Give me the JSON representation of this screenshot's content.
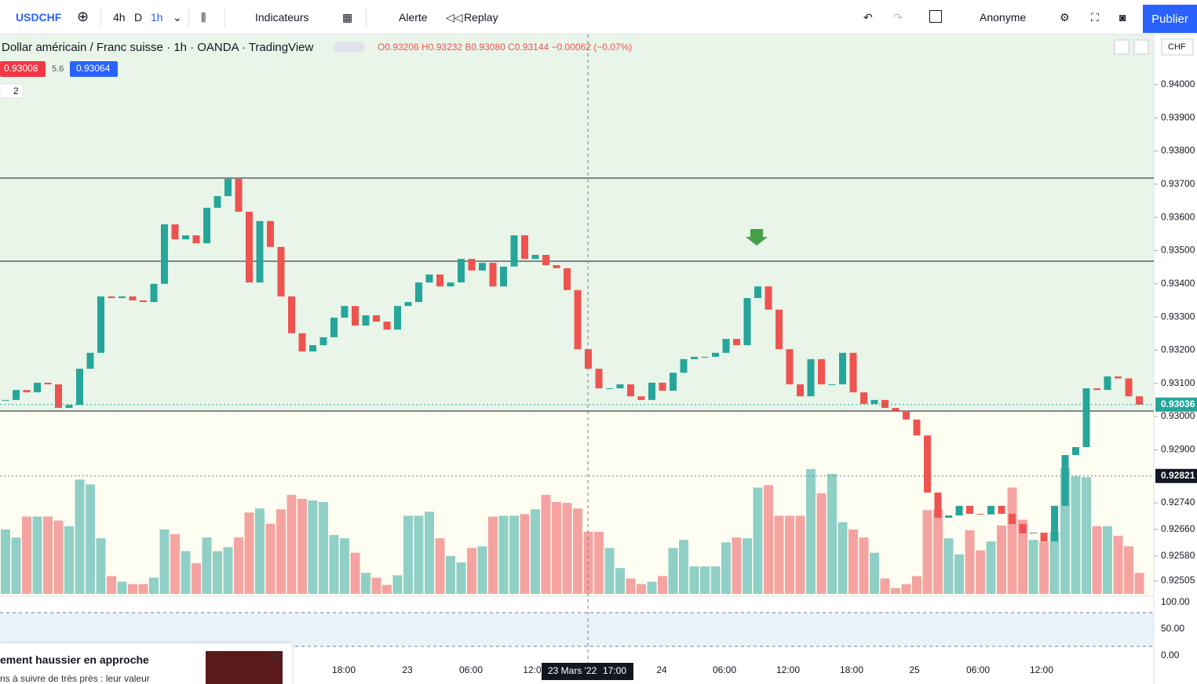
{
  "toolbar": {
    "symbol": "USDCHF",
    "intervals": [
      "4h",
      "D",
      "1h"
    ],
    "indicators": "Indicateurs",
    "alert": "Alerte",
    "replay": "Replay",
    "layout": "Anonyme",
    "publish": "Publier"
  },
  "legend": {
    "title": "Dollar américain / Franc suisse · 1h · OANDA · TradingView",
    "ohlc": "O0.93206 H0.93232 B0.93080 C0.93144 −0.00062 (−0.07%)",
    "bid": "0.93008",
    "spread": "5.6",
    "ask": "0.93064",
    "collapse": "2",
    "currency": "CHF"
  },
  "chart": {
    "ylim": [
      0.92466,
      0.94151
    ],
    "yticks": [
      {
        "value": 0.94,
        "label": "0.94000"
      },
      {
        "value": 0.939,
        "label": "0.93900"
      },
      {
        "value": 0.938,
        "label": "0.93800"
      },
      {
        "value": 0.937,
        "label": "0.93700"
      },
      {
        "value": 0.936,
        "label": "0.93600"
      },
      {
        "value": 0.935,
        "label": "0.93500"
      },
      {
        "value": 0.934,
        "label": "0.93400"
      },
      {
        "value": 0.933,
        "label": "0.93300"
      },
      {
        "value": 0.932,
        "label": "0.93200"
      },
      {
        "value": 0.931,
        "label": "0.93100"
      },
      {
        "value": 0.93,
        "label": "0.93000"
      },
      {
        "value": 0.929,
        "label": "0.92900"
      },
      {
        "value": 0.9274,
        "label": "0.92740"
      },
      {
        "value": 0.9266,
        "label": "0.92660"
      },
      {
        "value": 0.9258,
        "label": "0.92580"
      },
      {
        "value": 0.92505,
        "label": "0.92505"
      }
    ],
    "current_price": {
      "value": 0.93036,
      "label": "0.93036"
    },
    "crosshair_price": {
      "value": 0.92821,
      "label": "0.92821"
    },
    "crosshair_time": [
      "23 Mars '22",
      "17:00"
    ],
    "closes": [
      0.9305,
      0.9308,
      0.93073,
      0.93102,
      0.93097,
      0.93026,
      0.93035,
      0.93144,
      0.93192,
      0.93362,
      0.93357,
      0.93362,
      0.9335,
      0.93345,
      0.934,
      0.93579,
      0.93534,
      0.93546,
      0.93522,
      0.93629,
      0.93664,
      0.93716,
      0.93617,
      0.93404,
      0.93589,
      0.93511,
      0.93362,
      0.93251,
      0.93196,
      0.93215,
      0.93239,
      0.93298,
      0.93333,
      0.93274,
      0.93305,
      0.93286,
      0.93262,
      0.93333,
      0.93345,
      0.93404,
      0.93428,
      0.93392,
      0.93404,
      0.93475,
      0.9344,
      0.93463,
      0.93392,
      0.93452,
      0.93546,
      0.93475,
      0.93487,
      0.93456,
      0.93447,
      0.93381,
      0.93203,
      0.93144,
      0.93085,
      0.93085,
      0.93097,
      0.93061,
      0.9305,
      0.93102,
      0.93078,
      0.93132,
      0.93173,
      0.9318,
      0.9318,
      0.93192,
      0.93234,
      0.93215,
      0.93357,
      0.93392,
      0.93322,
      0.93203,
      0.93097,
      0.93061,
      0.93173,
      0.93097,
      0.93097,
      0.93192,
      0.93073,
      0.93038,
      0.9305,
      0.93026,
      0.93017,
      0.92991,
      0.92943,
      0.92771,
      0.92695,
      0.92702,
      0.92731,
      0.92707,
      0.92705,
      0.92731,
      0.92707,
      0.92676,
      0.92648,
      0.9265,
      0.92624,
      0.92731,
      0.92884,
      0.92908,
      0.93085,
      0.9308,
      0.93121,
      0.93115,
      0.93061,
      0.93036
    ],
    "volumes": [
      80,
      70,
      96,
      96,
      96,
      91,
      84,
      142,
      136,
      69,
      22,
      15,
      12,
      12,
      20,
      80,
      74,
      53,
      38,
      70,
      53,
      58,
      70,
      101,
      106,
      87,
      105,
      123,
      118,
      116,
      114,
      73,
      69,
      51,
      26,
      20,
      11,
      23,
      97,
      97,
      102,
      69,
      47,
      39,
      57,
      59,
      96,
      97,
      97,
      99,
      105,
      123,
      114,
      113,
      106,
      77,
      77,
      57,
      32,
      19,
      12,
      15,
      22,
      57,
      67,
      34,
      34,
      34,
      64,
      70,
      69,
      132,
      135,
      97,
      97,
      97,
      155,
      125,
      149,
      89,
      80,
      70,
      51,
      19,
      7,
      12,
      22,
      104,
      105,
      69,
      49,
      79,
      54,
      65,
      85,
      132,
      92,
      67,
      65,
      77,
      156,
      146,
      145,
      84,
      84,
      72,
      59,
      26
    ],
    "oscillator_ticks": [
      {
        "value": 100,
        "label": "100.00"
      },
      {
        "value": 50,
        "label": "50.00"
      },
      {
        "value": 0,
        "label": "0.00"
      }
    ],
    "time_labels": [
      "18:00",
      "23",
      "06:00",
      "12:0",
      "24",
      "06:00",
      "12:00",
      "18:00",
      "25",
      "06:00",
      "12:00"
    ]
  },
  "ad": {
    "headline": "ement haussier en approche",
    "text": "ns à suivre de très près : leur valeur"
  }
}
